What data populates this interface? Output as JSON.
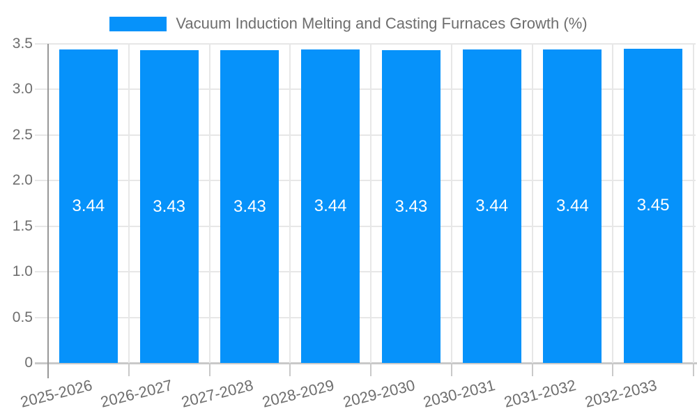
{
  "legend": {
    "label": "Vacuum Induction Melting and Casting Furnaces Growth (%)"
  },
  "colors": {
    "bar": "#0692fa",
    "grid": "#e7e7e7",
    "axis_line": "#979797",
    "baseline": "#c9c9c9",
    "text": "#6e6e6e",
    "bar_label_text": "#ffffff",
    "background": "#ffffff"
  },
  "chart_data": {
    "type": "bar",
    "title": "Vacuum Induction Melting and Casting Furnaces Growth (%)",
    "categories": [
      "2025-2026",
      "2026-2027",
      "2027-2028",
      "2028-2029",
      "2029-2030",
      "2030-2031",
      "2031-2032",
      "2032-2033"
    ],
    "values": [
      3.44,
      3.43,
      3.43,
      3.44,
      3.43,
      3.44,
      3.44,
      3.45
    ],
    "bar_labels": [
      "3.44",
      "3.43",
      "3.43",
      "3.44",
      "3.43",
      "3.44",
      "3.44",
      "3.45"
    ],
    "xlabel": "",
    "ylabel": "",
    "ylim": [
      0,
      3.5
    ],
    "ytick_values": [
      3.5,
      3.0,
      2.5,
      2.0,
      1.5,
      1.0,
      0.5,
      0
    ],
    "ytick_labels": [
      "3.5",
      "3.0",
      "2.5",
      "2.0",
      "1.5",
      "1.0",
      "0.5",
      "0"
    ],
    "grid": "horizontal and vertical category boundaries",
    "legend_position": "top-center",
    "bar_value_label_position": "middle of bar",
    "x_tick_label_rotation_deg": -14
  }
}
